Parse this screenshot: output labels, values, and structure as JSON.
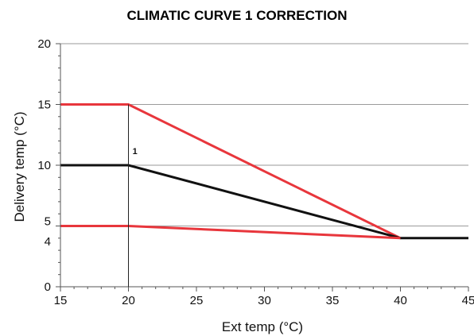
{
  "chart_data": {
    "type": "line",
    "title": "CLIMATIC CURVE 1 CORRECTION",
    "xlabel": "Ext temp (°C)",
    "ylabel": "Delivery temp (°C)",
    "xlim": [
      15,
      45
    ],
    "ylim": [
      0,
      20
    ],
    "x_ticks": [
      "15",
      "20",
      "25",
      "30",
      "35",
      "40",
      "45"
    ],
    "y_ticks": [
      {
        "value": 0,
        "label": "0"
      },
      {
        "value": 4,
        "label": "4"
      },
      {
        "value": 5,
        "label": "5"
      },
      {
        "value": 10,
        "label": "10"
      },
      {
        "value": 15,
        "label": "15"
      },
      {
        "value": 20,
        "label": "20"
      }
    ],
    "grid": "horizontal",
    "series": [
      {
        "color": "#e8363c",
        "points": [
          [
            15,
            15
          ],
          [
            20,
            15
          ],
          [
            40,
            4
          ]
        ]
      },
      {
        "color": "#111111",
        "points": [
          [
            15,
            10
          ],
          [
            20,
            10
          ],
          [
            40,
            4
          ],
          [
            45,
            4
          ]
        ]
      },
      {
        "color": "#e8363c",
        "points": [
          [
            15,
            5
          ],
          [
            20,
            5
          ],
          [
            40,
            4
          ]
        ]
      }
    ],
    "reference_line": {
      "x": 20
    },
    "annotations": [
      {
        "text": "1",
        "x": 20.3,
        "y": 10.9
      }
    ]
  }
}
